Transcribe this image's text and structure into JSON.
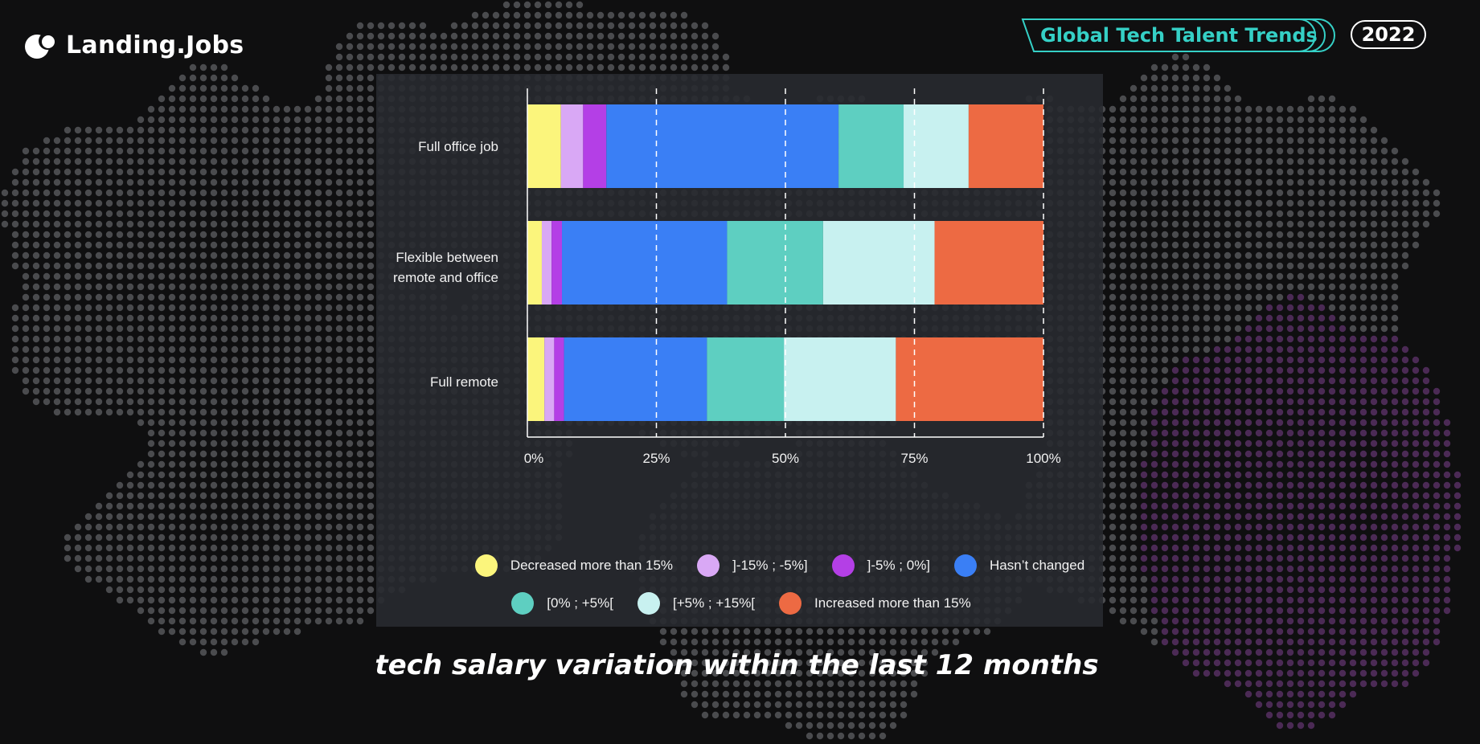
{
  "header": {
    "brand_name": "Landing.Jobs",
    "trend_label": "Global Tech Talent Trends",
    "year": "2022"
  },
  "subtitle": "tech salary variation within the last 12 months",
  "colors": {
    "background": "#0f0f10",
    "panel": "#282a30",
    "map_dot": "#4a4b4e",
    "map_dot_purple": "#4b2a55",
    "accent_teal": "#35d0c6"
  },
  "chart_data": {
    "type": "bar",
    "orientation": "horizontal",
    "stacked": true,
    "normalized": true,
    "categories": [
      "Full office job",
      "Flexible between\nremote and office",
      "Full remote"
    ],
    "series": [
      {
        "name": "Decreased more than 15%",
        "color": "#fbf57c",
        "values": [
          6.5,
          2.8,
          3.3
        ]
      },
      {
        "name": "]-15% ;  -5%]",
        "color": "#d9a8f5",
        "values": [
          4.3,
          1.9,
          1.9
        ]
      },
      {
        "name": "]-5% ; 0%]",
        "color": "#b43fe6",
        "values": [
          4.5,
          2.0,
          1.9
        ]
      },
      {
        "name": "Hasn’t changed",
        "color": "#3a7ff5",
        "values": [
          45.0,
          32.0,
          27.7
        ]
      },
      {
        "name": "[0% ; +5%[",
        "color": "#5ecfc1",
        "values": [
          12.6,
          18.6,
          14.9
        ]
      },
      {
        "name": "[+5% ; +15%[",
        "color": "#c8f1f0",
        "values": [
          12.6,
          21.6,
          21.7
        ]
      },
      {
        "name": "Increased more than 15%",
        "color": "#ed6a43",
        "values": [
          14.5,
          21.1,
          28.6
        ]
      }
    ],
    "x_ticks": [
      "0%",
      "25%",
      "50%",
      "75%",
      "100%"
    ],
    "xlim": [
      0,
      100
    ],
    "grid": "vertical dashed",
    "legend_position": "bottom"
  }
}
